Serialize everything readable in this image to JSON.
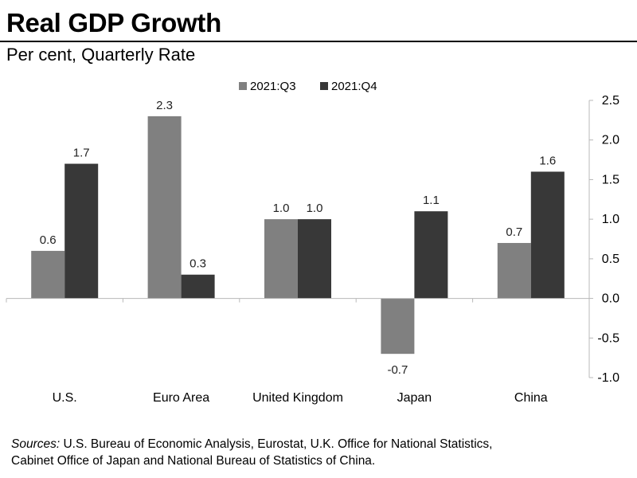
{
  "title": "Real GDP Growth",
  "subtitle": "Per cent, Quarterly Rate",
  "sources": {
    "label": "Sources:",
    "line1": " U.S. Bureau of Economic Analysis, Eurostat, U.K. Office for National Statistics,",
    "line2": "Cabinet Office of Japan and National Bureau of Statistics of China."
  },
  "chart_data": {
    "type": "bar",
    "title": "Real GDP Growth",
    "ylabel": "Per cent, Quarterly Rate",
    "xlabel": "",
    "categories": [
      "U.S.",
      "Euro Area",
      "United Kingdom",
      "Japan",
      "China"
    ],
    "series": [
      {
        "name": "2021:Q3",
        "color": "#808080",
        "values": [
          0.6,
          2.3,
          1.0,
          -0.7,
          0.7
        ],
        "labels": [
          "0.6",
          "2.3",
          "1.0",
          "-0.7",
          "0.7"
        ]
      },
      {
        "name": "2021:Q4",
        "color": "#383838",
        "values": [
          1.7,
          0.3,
          1.0,
          1.1,
          1.6
        ],
        "labels": [
          "1.7",
          "0.3",
          "1.0",
          "1.1",
          "1.6"
        ]
      }
    ],
    "ylim": [
      -1.0,
      2.5
    ],
    "yticks": [
      "2.5",
      "2.0",
      "1.5",
      "1.0",
      "0.5",
      "0.0",
      "-0.5",
      "-1.0"
    ],
    "ytick_values": [
      2.5,
      2.0,
      1.5,
      1.0,
      0.5,
      0.0,
      -0.5,
      -1.0
    ],
    "y_axis_side": "right",
    "legend_position": "top-center",
    "grid": false
  }
}
